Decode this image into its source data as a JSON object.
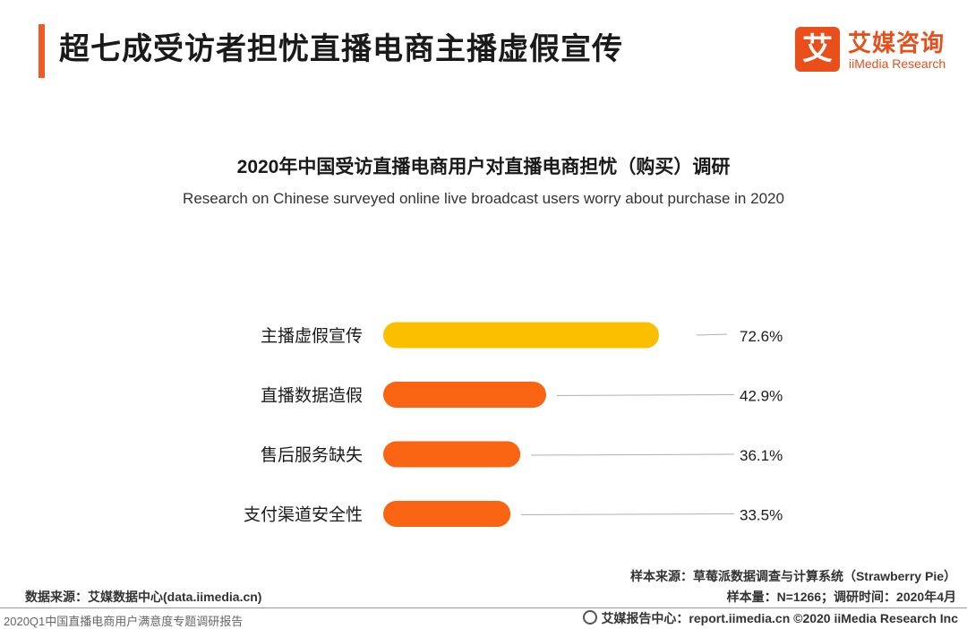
{
  "header": {
    "title": "超七成受访者担忧直播电商主播虚假宣传",
    "accent_color": "#f05a24"
  },
  "logo": {
    "mark": "艾",
    "cn": "艾媒咨询",
    "en": "iiMedia Research",
    "color": "#e94e1b"
  },
  "chart_data": {
    "type": "bar",
    "orientation": "horizontal",
    "title": "2020年中国受访直播电商用户对直播电商担忧（购买）调研",
    "subtitle": "Research on Chinese surveyed online live broadcast users worry about purchase in 2020",
    "categories": [
      "主播虚假宣传",
      "直播数据造假",
      "售后服务缺失",
      "支付渠道安全性"
    ],
    "values": [
      72.6,
      42.9,
      36.1,
      33.5
    ],
    "value_labels": [
      "72.6%",
      "42.9%",
      "36.1%",
      "33.5%"
    ],
    "unit": "%",
    "xlim": [
      0,
      100
    ],
    "grid": false,
    "bar_colors": [
      "#fbbf00",
      "#f86412",
      "#f86412",
      "#f86412"
    ]
  },
  "notes": {
    "sample_source": "样本来源：草莓派数据调查与计算系统（Strawberry Pie）",
    "sample_size": "样本量：N=1266；调研时间：2020年4月",
    "data_source": "数据来源：艾媒数据中心(data.iimedia.cn)"
  },
  "footer": {
    "report": "2020Q1中国直播电商用户满意度专题调研报告",
    "center_copyright": "艾媒报告中心：report.iimedia.cn  ©2020  iiMedia Research  Inc"
  }
}
